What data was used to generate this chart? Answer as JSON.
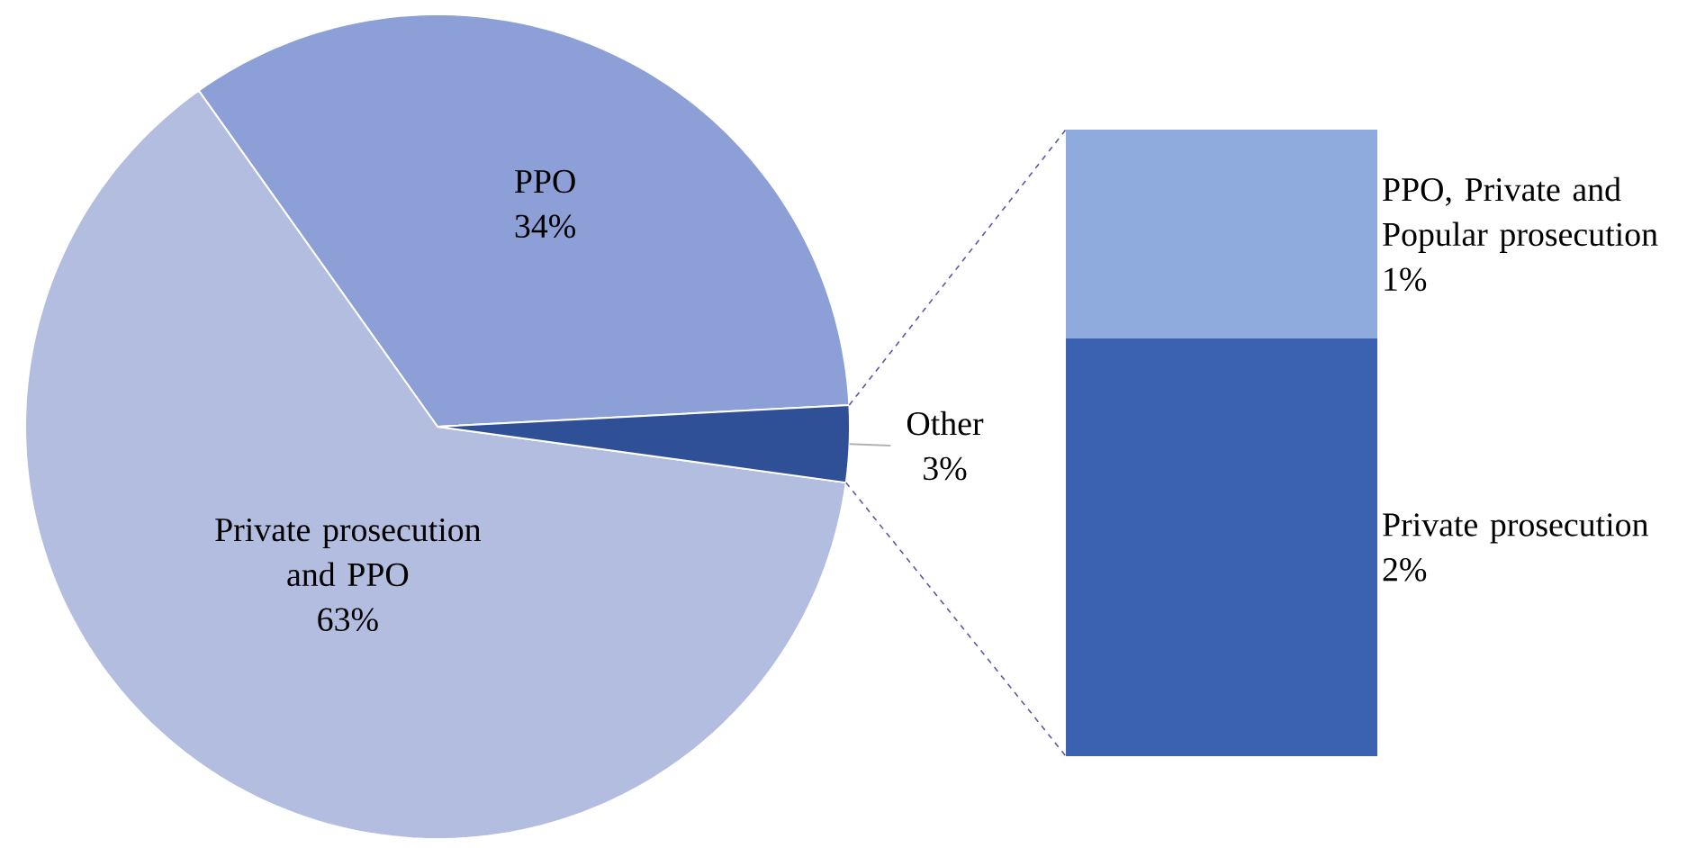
{
  "chart_data": [
    {
      "type": "pie",
      "categories": [
        "PPO",
        "Private prosecution and PPO",
        "Other"
      ],
      "values": [
        34,
        63,
        3
      ],
      "colors": [
        "#8c9fd6",
        "#b3bde0",
        "#2f4f96"
      ],
      "value_labels": [
        "34%",
        "63%",
        "3%"
      ]
    },
    {
      "type": "bar",
      "stacked": true,
      "categories": [
        null
      ],
      "series": [
        {
          "name": "Private prosecution",
          "color": "#3a62b0",
          "values": [
            2
          ],
          "value_labels": [
            "2%"
          ]
        },
        {
          "name": "PPO, Private and Popular prosecution",
          "color": "#8faadc",
          "values": [
            1
          ],
          "value_labels": [
            "1%"
          ]
        }
      ]
    }
  ]
}
